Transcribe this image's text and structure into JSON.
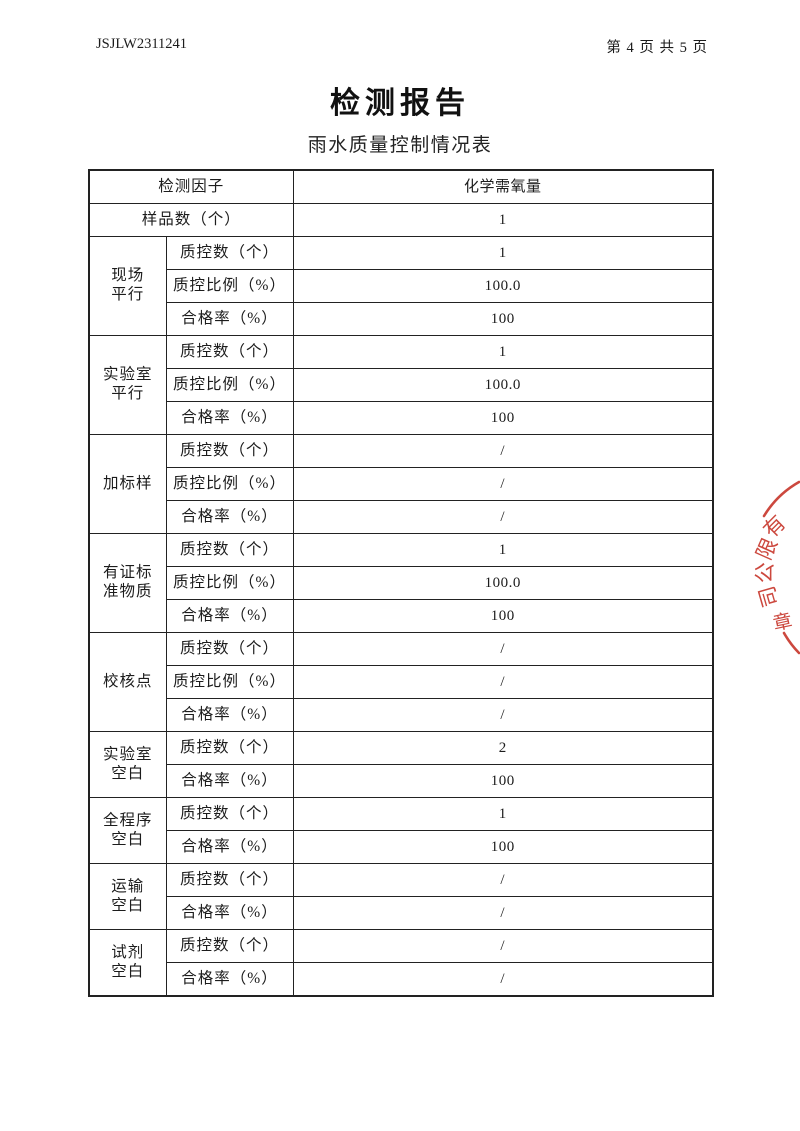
{
  "page_header": {
    "report_no": "JSJLW2311241",
    "page_info": "第 4 页 共 5 页"
  },
  "title": "检测报告",
  "subtitle": "雨水质量控制情况表",
  "table": {
    "factor_label": "检测因子",
    "factor_value": "化学需氧量",
    "sample_label": "样品数（个）",
    "sample_value": "1",
    "sections": [
      {
        "group_lines": [
          "现场",
          "平行"
        ],
        "rows": [
          {
            "label": "质控数（个）",
            "value": "1"
          },
          {
            "label": "质控比例（%）",
            "value": "100.0"
          },
          {
            "label": "合格率（%）",
            "value": "100"
          }
        ]
      },
      {
        "group_lines": [
          "实验室",
          "平行"
        ],
        "rows": [
          {
            "label": "质控数（个）",
            "value": "1"
          },
          {
            "label": "质控比例（%）",
            "value": "100.0"
          },
          {
            "label": "合格率（%）",
            "value": "100"
          }
        ]
      },
      {
        "group_lines": [
          "加标样"
        ],
        "rows": [
          {
            "label": "质控数（个）",
            "value": "/"
          },
          {
            "label": "质控比例（%）",
            "value": "/"
          },
          {
            "label": "合格率（%）",
            "value": "/"
          }
        ]
      },
      {
        "group_lines": [
          "有证标",
          "准物质"
        ],
        "rows": [
          {
            "label": "质控数（个）",
            "value": "1"
          },
          {
            "label": "质控比例（%）",
            "value": "100.0"
          },
          {
            "label": "合格率（%）",
            "value": "100"
          }
        ]
      },
      {
        "group_lines": [
          "校核点"
        ],
        "rows": [
          {
            "label": "质控数（个）",
            "value": "/"
          },
          {
            "label": "质控比例（%）",
            "value": "/"
          },
          {
            "label": "合格率（%）",
            "value": "/"
          }
        ]
      },
      {
        "group_lines": [
          "实验室",
          "空白"
        ],
        "rows": [
          {
            "label": "质控数（个）",
            "value": "2"
          },
          {
            "label": "合格率（%）",
            "value": "100"
          }
        ]
      },
      {
        "group_lines": [
          "全程序",
          "空白"
        ],
        "rows": [
          {
            "label": "质控数（个）",
            "value": "1"
          },
          {
            "label": "合格率（%）",
            "value": "100"
          }
        ]
      },
      {
        "group_lines": [
          "运输",
          "空白"
        ],
        "rows": [
          {
            "label": "质控数（个）",
            "value": "/"
          },
          {
            "label": "合格率（%）",
            "value": "/"
          }
        ]
      },
      {
        "group_lines": [
          "试剂",
          "空白"
        ],
        "rows": [
          {
            "label": "质控数（个）",
            "value": "/"
          },
          {
            "label": "合格率（%）",
            "value": "/"
          }
        ]
      }
    ]
  },
  "seal": {
    "arc_chars": [
      "有",
      "限",
      "公",
      "司"
    ],
    "center_char": "章",
    "color": "#c8392e"
  }
}
